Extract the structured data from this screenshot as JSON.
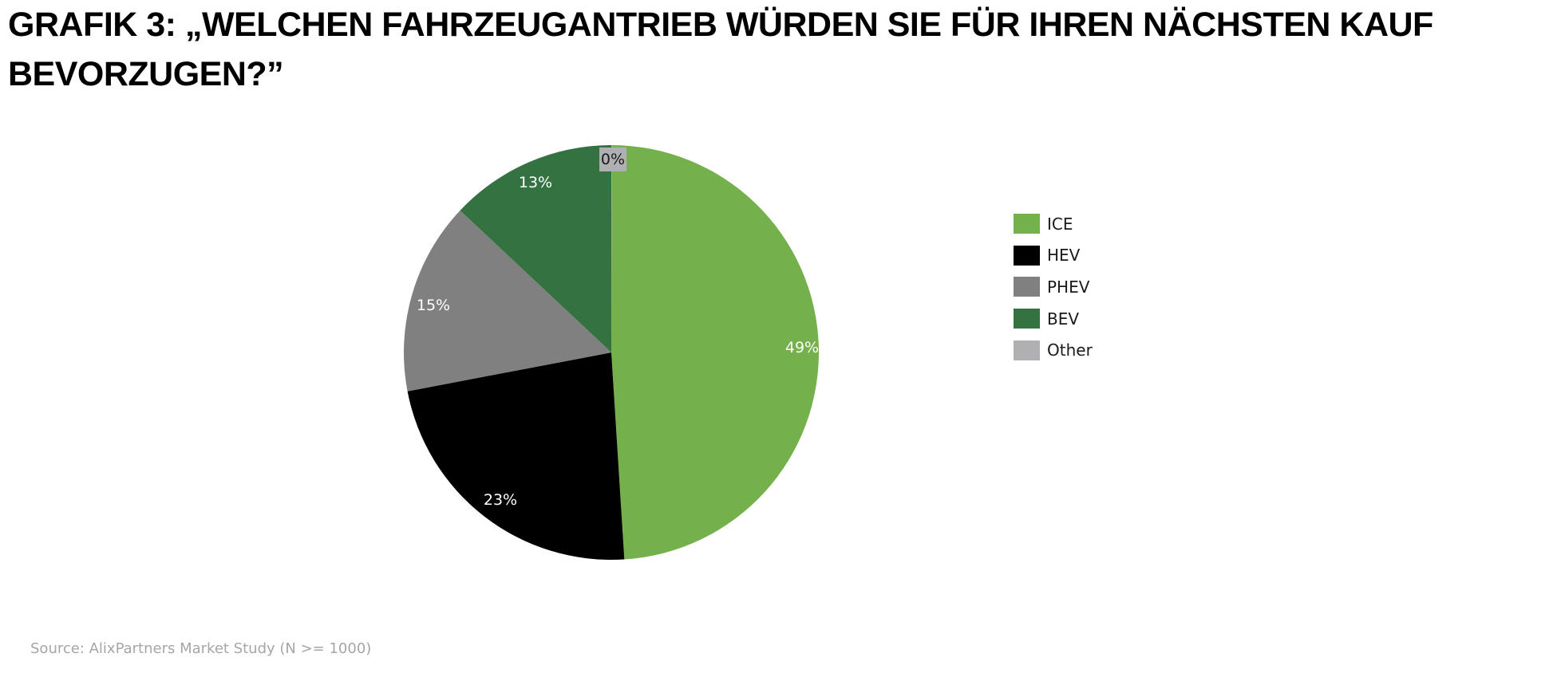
{
  "title": "GRAFIK 3: „WELCHEN FAHRZEUGANTRIEB WÜRDEN SIE FÜR IHREN NÄCHSTEN KAUF BEVORZUGEN?”",
  "source": "Source: AlixPartners Market Study (N >= 1000)",
  "chart_data": {
    "type": "pie",
    "title": "GRAFIK 3: „WELCHEN FAHRZEUGANTRIEB WÜRDEN SIE FÜR IHREN NÄCHSTEN KAUF BEVORZUGEN?”",
    "categories": [
      "ICE",
      "HEV",
      "PHEV",
      "BEV",
      "Other"
    ],
    "values": [
      49,
      23,
      15,
      13,
      0
    ],
    "data_labels": [
      "49%",
      "23%",
      "15%",
      "13%",
      "0%"
    ],
    "colors": [
      "#74b04b",
      "#000000",
      "#808080",
      "#347242",
      "#b0b0b2"
    ],
    "label_colors": [
      "#ffffff",
      "#ffffff",
      "#ffffff",
      "#ffffff",
      "#1a1a1a"
    ],
    "legend_position": "right",
    "start_angle": "12 o'clock",
    "direction": "clockwise"
  }
}
